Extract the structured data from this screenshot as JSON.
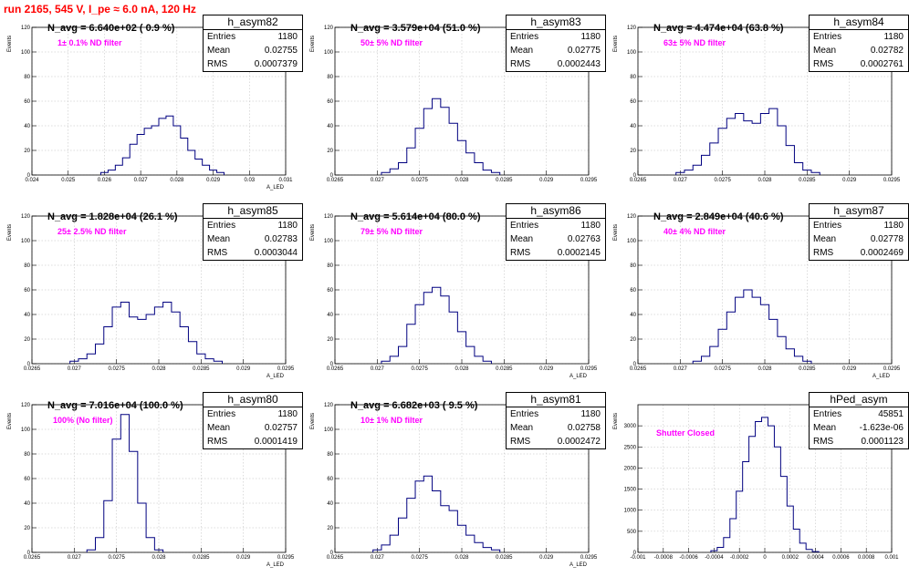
{
  "page_title": "run 2165,   545 V, I_pe ≈ 6.0 nA, 120 Hz",
  "colors": {
    "title": "#ff0000",
    "histogram": "#000080",
    "annotation": "#ff00ff",
    "grid": "#bbbbbb"
  },
  "stat_labels": {
    "entries": "Entries",
    "mean": "Mean",
    "rms": "RMS"
  },
  "panels": [
    {
      "name": "h_asym82",
      "navg": "N_avg = 6.640e+02 ( 0.9 %)",
      "filter": "1± 0.1% ND filter",
      "entries": "1180",
      "mean": "0.02755",
      "rms": "0.0007379",
      "ylabel": "Events",
      "xlabel": "A_LED"
    },
    {
      "name": "h_asym83",
      "navg": "N_avg = 3.579e+04 (51.0 %)",
      "filter": "50± 5% ND filter",
      "entries": "1180",
      "mean": "0.02775",
      "rms": "0.0002443",
      "ylabel": "Events",
      "xlabel": ""
    },
    {
      "name": "h_asym84",
      "navg": "N_avg = 4.474e+04 (63.8 %)",
      "filter": "63± 5% ND filter",
      "entries": "1180",
      "mean": "0.02782",
      "rms": "0.0002761",
      "ylabel": "Events",
      "xlabel": ""
    },
    {
      "name": "h_asym85",
      "navg": "N_avg = 1.828e+04 (26.1 %)",
      "filter": "25± 2.5% ND filter",
      "entries": "1180",
      "mean": "0.02783",
      "rms": "0.0003044",
      "ylabel": "Events",
      "xlabel": "A_LED"
    },
    {
      "name": "h_asym86",
      "navg": "N_avg = 5.614e+04 (80.0 %)",
      "filter": "79± 5% ND filter",
      "entries": "1180",
      "mean": "0.02763",
      "rms": "0.0002145",
      "ylabel": "Events",
      "xlabel": "A_LED"
    },
    {
      "name": "h_asym87",
      "navg": "N_avg = 2.849e+04 (40.6 %)",
      "filter": "40± 4% ND filter",
      "entries": "1180",
      "mean": "0.02778",
      "rms": "0.0002469",
      "ylabel": "Events",
      "xlabel": "A_LED"
    },
    {
      "name": "h_asym80",
      "navg": "N_avg = 7.016e+04 (100.0 %)",
      "filter": "100% (No filter)",
      "entries": "1180",
      "mean": "0.02757",
      "rms": "0.0001419",
      "ylabel": "Events",
      "xlabel": "A_LED"
    },
    {
      "name": "h_asym81",
      "navg": "N_avg = 6.682e+03 ( 9.5 %)",
      "filter": "10± 1% ND filter",
      "entries": "1180",
      "mean": "0.02758",
      "rms": "0.0002472",
      "ylabel": "Events",
      "xlabel": "A_LED"
    },
    {
      "name": "hPed_asym",
      "navg": "",
      "filter": "Shutter Closed",
      "entries": "45851",
      "mean": "-1.623e-06",
      "rms": "0.0001123",
      "ylabel": "Events",
      "xlabel": ""
    }
  ],
  "chart_data": [
    {
      "type": "bar",
      "title": "h_asym82",
      "xlim": [
        0.024,
        0.031
      ],
      "ylim": [
        0,
        120
      ],
      "xticks": [
        "0.024",
        "0.025",
        "0.026",
        "0.027",
        "0.028",
        "0.029",
        "0.03",
        "0.031"
      ],
      "yticks": [
        "0",
        "20",
        "40",
        "60",
        "80",
        "100",
        "120"
      ],
      "x": [
        0.026,
        0.0262,
        0.0264,
        0.0266,
        0.0268,
        0.027,
        0.0272,
        0.0274,
        0.0276,
        0.0278,
        0.028,
        0.0282,
        0.0284,
        0.0286,
        0.0288,
        0.029,
        0.0292
      ],
      "values": [
        2,
        4,
        8,
        14,
        25,
        33,
        38,
        40,
        46,
        48,
        40,
        30,
        20,
        13,
        8,
        4,
        2
      ]
    },
    {
      "type": "bar",
      "title": "h_asym83",
      "xlim": [
        0.0265,
        0.0295
      ],
      "ylim": [
        0,
        120
      ],
      "xticks": [
        "0.0265",
        "0.027",
        "0.0275",
        "0.028",
        "0.0285",
        "0.029",
        "0.0295"
      ],
      "yticks": [
        "0",
        "20",
        "40",
        "60",
        "80",
        "100",
        "120"
      ],
      "x": [
        0.0271,
        0.0272,
        0.0273,
        0.0274,
        0.0275,
        0.0276,
        0.0277,
        0.0278,
        0.0279,
        0.028,
        0.0281,
        0.0282,
        0.0283,
        0.0284
      ],
      "values": [
        2,
        5,
        10,
        22,
        38,
        54,
        62,
        55,
        42,
        28,
        18,
        10,
        4,
        2
      ]
    },
    {
      "type": "bar",
      "title": "h_asym84",
      "xlim": [
        0.0265,
        0.0295
      ],
      "ylim": [
        0,
        120
      ],
      "xticks": [
        "0.0265",
        "0.027",
        "0.0275",
        "0.028",
        "0.0285",
        "0.029",
        "0.0295"
      ],
      "yticks": [
        "0",
        "20",
        "40",
        "60",
        "80",
        "100",
        "120"
      ],
      "x": [
        0.027,
        0.0271,
        0.0272,
        0.0273,
        0.0274,
        0.0275,
        0.0276,
        0.0277,
        0.0278,
        0.0279,
        0.028,
        0.0281,
        0.0282,
        0.0283,
        0.0284,
        0.0285,
        0.0286
      ],
      "values": [
        2,
        4,
        8,
        16,
        26,
        38,
        46,
        50,
        44,
        42,
        50,
        54,
        40,
        24,
        10,
        4,
        2
      ]
    },
    {
      "type": "bar",
      "title": "h_asym85",
      "xlim": [
        0.0265,
        0.0295
      ],
      "ylim": [
        0,
        120
      ],
      "xticks": [
        "0.0265",
        "0.027",
        "0.0275",
        "0.028",
        "0.0285",
        "0.029",
        "0.0295"
      ],
      "yticks": [
        "0",
        "20",
        "40",
        "60",
        "80",
        "100",
        "120"
      ],
      "x": [
        0.027,
        0.0271,
        0.0272,
        0.0273,
        0.0274,
        0.0275,
        0.0276,
        0.0277,
        0.0278,
        0.0279,
        0.028,
        0.0281,
        0.0282,
        0.0283,
        0.0284,
        0.0285,
        0.0286,
        0.0287
      ],
      "values": [
        2,
        4,
        8,
        16,
        30,
        46,
        50,
        38,
        36,
        40,
        46,
        50,
        42,
        30,
        18,
        8,
        4,
        2
      ]
    },
    {
      "type": "bar",
      "title": "h_asym86",
      "xlim": [
        0.0265,
        0.0295
      ],
      "ylim": [
        0,
        120
      ],
      "xticks": [
        "0.0265",
        "0.027",
        "0.0275",
        "0.028",
        "0.0285",
        "0.029",
        "0.0295"
      ],
      "yticks": [
        "0",
        "20",
        "40",
        "60",
        "80",
        "100",
        "120"
      ],
      "x": [
        0.0271,
        0.0272,
        0.0273,
        0.0274,
        0.0275,
        0.0276,
        0.0277,
        0.0278,
        0.0279,
        0.028,
        0.0281,
        0.0282,
        0.0283
      ],
      "values": [
        2,
        6,
        14,
        32,
        48,
        58,
        62,
        55,
        42,
        26,
        14,
        6,
        2
      ]
    },
    {
      "type": "bar",
      "title": "h_asym87",
      "xlim": [
        0.0265,
        0.0295
      ],
      "ylim": [
        0,
        120
      ],
      "xticks": [
        "0.0265",
        "0.027",
        "0.0275",
        "0.028",
        "0.0285",
        "0.029",
        "0.0295"
      ],
      "yticks": [
        "0",
        "20",
        "40",
        "60",
        "80",
        "100",
        "120"
      ],
      "x": [
        0.0272,
        0.0273,
        0.0274,
        0.0275,
        0.0276,
        0.0277,
        0.0278,
        0.0279,
        0.028,
        0.0281,
        0.0282,
        0.0283,
        0.0284,
        0.0285
      ],
      "values": [
        2,
        6,
        14,
        28,
        42,
        54,
        60,
        54,
        48,
        36,
        22,
        12,
        6,
        2
      ]
    },
    {
      "type": "bar",
      "title": "h_asym80",
      "xlim": [
        0.0265,
        0.0295
      ],
      "ylim": [
        0,
        120
      ],
      "xticks": [
        "0.0265",
        "0.027",
        "0.0275",
        "0.028",
        "0.0285",
        "0.029",
        "0.0295"
      ],
      "yticks": [
        "0",
        "20",
        "40",
        "60",
        "80",
        "100",
        "120"
      ],
      "x": [
        0.0272,
        0.0273,
        0.0274,
        0.0275,
        0.0276,
        0.0277,
        0.0278,
        0.0279,
        0.028
      ],
      "values": [
        2,
        12,
        42,
        92,
        112,
        82,
        40,
        12,
        2
      ]
    },
    {
      "type": "bar",
      "title": "h_asym81",
      "xlim": [
        0.0265,
        0.0295
      ],
      "ylim": [
        0,
        120
      ],
      "xticks": [
        "0.0265",
        "0.027",
        "0.0275",
        "0.028",
        "0.0285",
        "0.029",
        "0.0295"
      ],
      "yticks": [
        "0",
        "20",
        "40",
        "60",
        "80",
        "100",
        "120"
      ],
      "x": [
        0.027,
        0.0271,
        0.0272,
        0.0273,
        0.0274,
        0.0275,
        0.0276,
        0.0277,
        0.0278,
        0.0279,
        0.028,
        0.0281,
        0.0282,
        0.0283,
        0.0284
      ],
      "values": [
        2,
        6,
        14,
        28,
        44,
        58,
        62,
        50,
        38,
        34,
        22,
        14,
        8,
        4,
        2
      ]
    },
    {
      "type": "bar",
      "title": "hPed_asym",
      "xlim": [
        -0.001,
        0.001
      ],
      "ylim": [
        0,
        3500
      ],
      "xticks": [
        "-0.001",
        "-0.0008",
        "-0.0006",
        "-0.0004",
        "-0.0002",
        "0",
        "0.0002",
        "0.0004",
        "0.0006",
        "0.0008",
        "0.001"
      ],
      "yticks": [
        "0",
        "500",
        "1000",
        "1500",
        "2000",
        "2500",
        "3000"
      ],
      "x": [
        -0.0004,
        -0.00035,
        -0.0003,
        -0.00025,
        -0.0002,
        -0.00015,
        -0.0001,
        -5e-05,
        0.0,
        5e-05,
        0.0001,
        0.00015,
        0.0002,
        0.00025,
        0.0003,
        0.00035,
        0.0004
      ],
      "values": [
        40,
        120,
        350,
        800,
        1450,
        2150,
        2750,
        3100,
        3200,
        3000,
        2500,
        1800,
        1100,
        550,
        220,
        70,
        20
      ]
    }
  ]
}
